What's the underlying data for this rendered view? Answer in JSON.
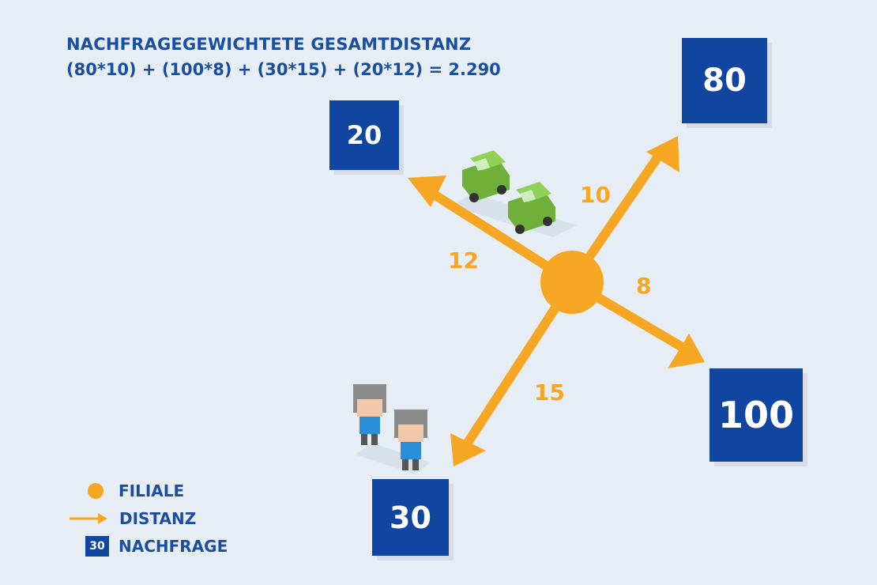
{
  "header": {
    "title": "NACHFRAGEGEWICHTETE GESAMTDISTANZ",
    "formula": "(80*10) + (100*8) + (30*15) + (20*12) = 2.290"
  },
  "demands": {
    "top_left": "20",
    "top_right": "80",
    "bottom_right": "100",
    "bottom": "30"
  },
  "distances": {
    "to_top_left": "12",
    "to_top_right": "10",
    "to_bottom_right": "8",
    "to_bottom": "15"
  },
  "legend": {
    "filiale": "FILIALE",
    "distanz": "DISTANZ",
    "nachfrage": "NACHFRAGE",
    "sample_demand": "30"
  },
  "colors": {
    "accent_orange": "#f5a623",
    "box_blue": "#1045a0",
    "text_blue": "#1a4ea0",
    "car_green": "#7cc242",
    "person_blue": "#2a8fd8",
    "background": "#e6edf5"
  },
  "icons": [
    "car-icon",
    "person-icon",
    "store-circle-icon",
    "arrow-icon"
  ]
}
